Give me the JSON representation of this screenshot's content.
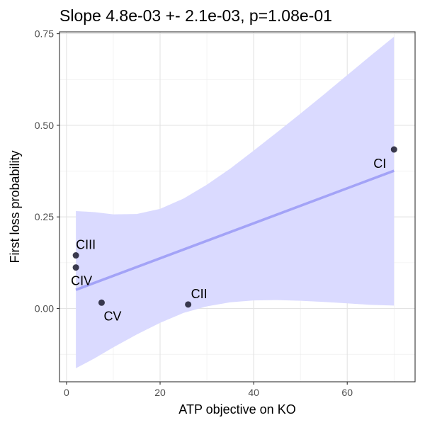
{
  "chart_data": {
    "type": "scatter",
    "title": "Slope 4.8e-03 +- 2.1e-03, p=1.08e-01",
    "xlabel": "ATP objective on KO",
    "ylabel": "First loss probability",
    "xlim": [
      -1.5,
      74.5
    ],
    "ylim": [
      -0.2,
      0.755
    ],
    "x_ticks": [
      0,
      20,
      40,
      60
    ],
    "x_tick_labels": [
      "0",
      "20",
      "40",
      "60"
    ],
    "y_ticks": [
      0.0,
      0.25,
      0.5,
      0.75
    ],
    "y_tick_labels": [
      "0.00",
      "0.25",
      "0.50",
      "0.75"
    ],
    "grid": true,
    "points": [
      {
        "label": "CI",
        "x": 70.0,
        "y": 0.434
      },
      {
        "label": "CII",
        "x": 26.0,
        "y": 0.011
      },
      {
        "label": "CIII",
        "x": 2.0,
        "y": 0.145
      },
      {
        "label": "CIV",
        "x": 2.0,
        "y": 0.112
      },
      {
        "label": "CV",
        "x": 7.5,
        "y": 0.016
      }
    ],
    "fit_line": {
      "x": [
        2.0,
        70.0
      ],
      "y": [
        0.051,
        0.376
      ]
    },
    "confidence_band": {
      "x": [
        2.0,
        6.0,
        10.0,
        15.0,
        20.0,
        25.0,
        30.0,
        35.0,
        40.0,
        45.0,
        50.0,
        55.0,
        60.0,
        65.0,
        70.0
      ],
      "upper": [
        0.266,
        0.263,
        0.257,
        0.258,
        0.272,
        0.3,
        0.338,
        0.382,
        0.431,
        0.481,
        0.532,
        0.584,
        0.637,
        0.69,
        0.742
      ],
      "lower": [
        -0.163,
        -0.136,
        -0.106,
        -0.071,
        -0.039,
        -0.012,
        0.006,
        0.017,
        0.022,
        0.023,
        0.021,
        0.018,
        0.014,
        0.01,
        0.008
      ]
    },
    "colors": {
      "band": "#dadaff",
      "line": "#a3a3f7",
      "point": "#1a1a2e",
      "grid": "#ebebeb",
      "panel_border": "#333333"
    }
  }
}
